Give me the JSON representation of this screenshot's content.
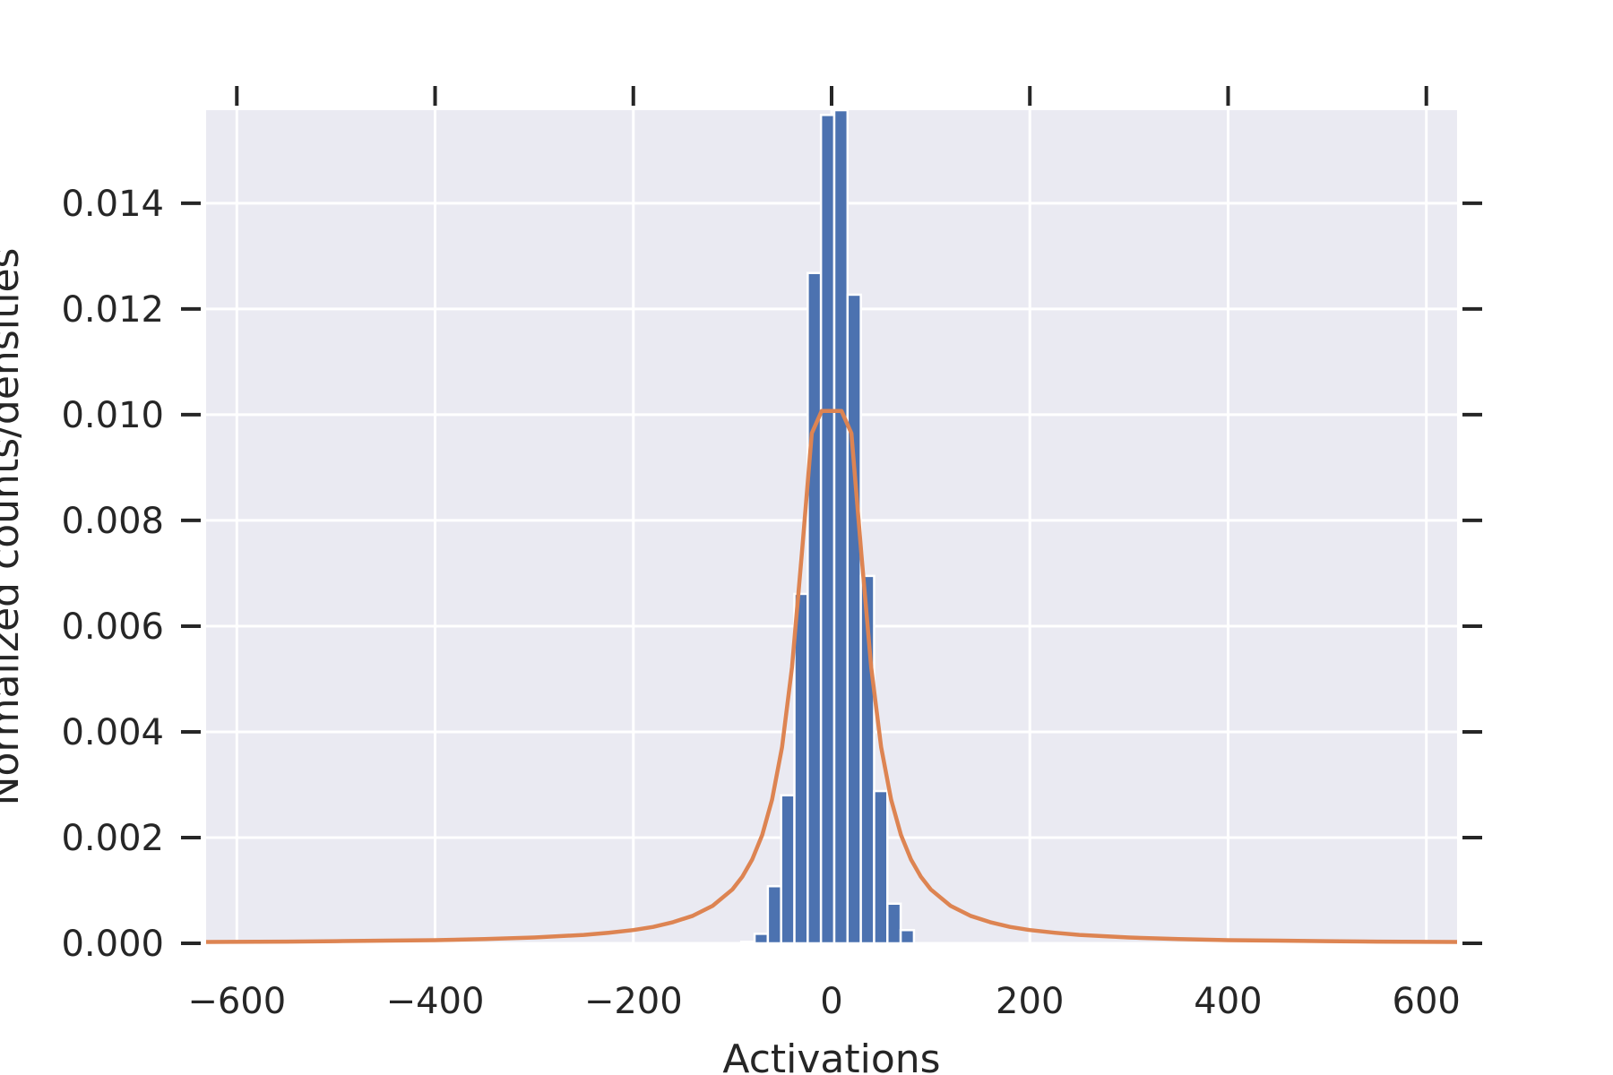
{
  "chart_data": {
    "type": "bar",
    "xlabel": "Activations",
    "ylabel": "Normalized counts/densities",
    "xlim": [
      -631,
      631
    ],
    "ylim": [
      0,
      0.01576
    ],
    "xticks": [
      -600,
      -400,
      -200,
      0,
      200,
      400,
      600
    ],
    "xtick_labels": [
      "−600",
      "−400",
      "−200",
      "0",
      "200",
      "400",
      "600"
    ],
    "yticks": [
      0.0,
      0.002,
      0.004,
      0.006,
      0.008,
      0.01,
      0.012,
      0.014
    ],
    "ytick_labels": [
      "0.000",
      "0.002",
      "0.004",
      "0.006",
      "0.008",
      "0.010",
      "0.012",
      "0.014"
    ],
    "grid": true,
    "colors": {
      "background": "#eaeaf2",
      "grid": "#ffffff",
      "bars": "#4c72b0",
      "curve": "#dd8452",
      "text": "#262626"
    },
    "histogram": {
      "bin_edges": [
        -91.1,
        -77.7,
        -64.3,
        -50.9,
        -37.5,
        -24.1,
        -10.7,
        2.7,
        16.1,
        29.5,
        42.9,
        56.3,
        69.7,
        83.1
      ],
      "values": [
        3e-05,
        0.00018,
        0.00108,
        0.0028,
        0.00661,
        0.01268,
        0.01567,
        0.01576,
        0.01227,
        0.00695,
        0.00288,
        0.00075,
        0.00025
      ]
    },
    "density_curve": {
      "x": [
        -631,
        -550,
        -500,
        -450,
        -400,
        -350,
        -300,
        -250,
        -225,
        -200,
        -180,
        -160,
        -140,
        -120,
        -100,
        -90,
        -80,
        -70,
        -60,
        -50,
        -40,
        -30,
        -20,
        -10,
        0,
        10,
        20,
        30,
        40,
        50,
        60,
        70,
        80,
        90,
        100,
        120,
        140,
        160,
        180,
        200,
        225,
        250,
        300,
        350,
        400,
        450,
        500,
        550,
        631
      ],
      "y": [
        2.5e-05,
        3.3e-05,
        4e-05,
        5e-05,
        6e-05,
        8e-05,
        0.00011,
        0.00016,
        0.0002,
        0.00025,
        0.00031,
        0.0004,
        0.00052,
        0.00071,
        0.00102,
        0.00126,
        0.00159,
        0.00205,
        0.00272,
        0.00371,
        0.00522,
        0.00737,
        0.00965,
        0.01007,
        0.01007,
        0.01007,
        0.00965,
        0.00737,
        0.00522,
        0.00371,
        0.00272,
        0.00205,
        0.00159,
        0.00126,
        0.00102,
        0.00071,
        0.00052,
        0.0004,
        0.00031,
        0.00025,
        0.0002,
        0.00016,
        0.00011,
        8e-05,
        6e-05,
        5e-05,
        4e-05,
        3.3e-05,
        2.5e-05
      ]
    }
  }
}
